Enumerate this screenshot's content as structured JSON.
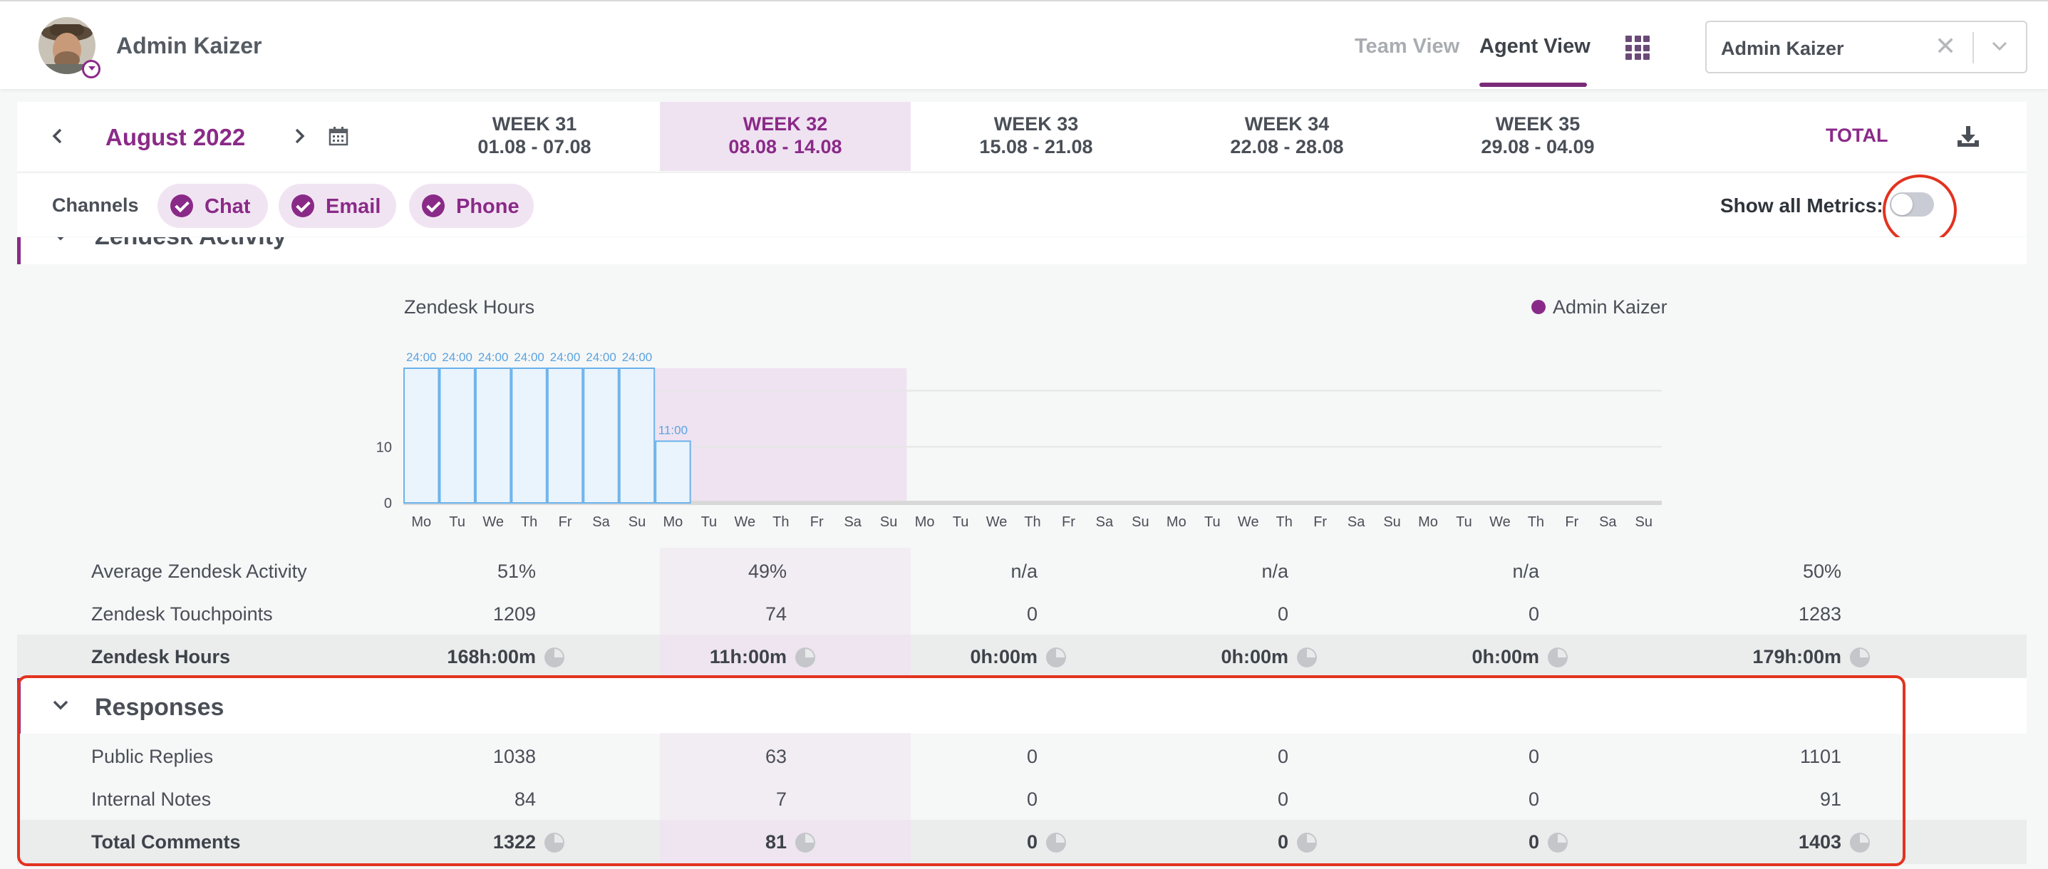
{
  "header": {
    "user_name": "Admin Kaizer",
    "tabs": [
      {
        "label": "Team View",
        "active": false
      },
      {
        "label": "Agent View",
        "active": true
      }
    ],
    "user_select": {
      "value": "Admin Kaizer"
    }
  },
  "weeks": {
    "month": "August 2022",
    "columns": [
      {
        "title": "WEEK 31",
        "range": "01.08 - 07.08",
        "active": false
      },
      {
        "title": "WEEK 32",
        "range": "08.08 - 14.08",
        "active": true
      },
      {
        "title": "WEEK 33",
        "range": "15.08 - 21.08",
        "active": false
      },
      {
        "title": "WEEK 34",
        "range": "22.08 - 28.08",
        "active": false
      },
      {
        "title": "WEEK 35",
        "range": "29.08 - 04.09",
        "active": false
      }
    ],
    "total_label": "TOTAL"
  },
  "channels": {
    "label": "Channels",
    "items": [
      "Chat",
      "Email",
      "Phone"
    ],
    "show_all_metrics_label": "Show all Metrics:",
    "show_all_metrics_on": false
  },
  "zendesk": {
    "section_title": "Zendesk Activity",
    "chart_title": "Zendesk Hours",
    "legend": "Admin Kaizer",
    "rows": [
      {
        "label": "Average Zendesk Activity",
        "values": [
          "51%",
          "49%",
          "n/a",
          "n/a",
          "n/a"
        ],
        "total": "50%",
        "bold": false,
        "icon": false
      },
      {
        "label": "Zendesk Touchpoints",
        "values": [
          "1209",
          "74",
          "0",
          "0",
          "0"
        ],
        "total": "1283",
        "bold": false,
        "icon": false
      },
      {
        "label": "Zendesk Hours",
        "values": [
          "168h:00m",
          "11h:00m",
          "0h:00m",
          "0h:00m",
          "0h:00m"
        ],
        "total": "179h:00m",
        "bold": true,
        "icon": true
      }
    ]
  },
  "responses": {
    "section_title": "Responses",
    "rows": [
      {
        "label": "Public Replies",
        "values": [
          "1038",
          "63",
          "0",
          "0",
          "0"
        ],
        "total": "1101",
        "bold": false,
        "icon": false
      },
      {
        "label": "Internal Notes",
        "values": [
          "84",
          "7",
          "0",
          "0",
          "0"
        ],
        "total": "91",
        "bold": false,
        "icon": false
      },
      {
        "label": "Total Comments",
        "values": [
          "1322",
          "81",
          "0",
          "0",
          "0"
        ],
        "total": "1403",
        "bold": true,
        "icon": true
      }
    ]
  },
  "colors": {
    "accent": "#8a2a88",
    "active_week_bg": "#efe3f1",
    "bar_fill": "#eaf4fd",
    "bar_stroke": "#6cb2ea",
    "annotation_red": "#e2331f"
  },
  "chart_data": {
    "type": "bar",
    "title": "Zendesk Hours",
    "series": [
      {
        "name": "Admin Kaizer",
        "values": [
          24,
          24,
          24,
          24,
          24,
          24,
          24,
          11,
          0,
          0,
          0,
          0,
          0,
          0,
          0,
          0,
          0,
          0,
          0,
          0,
          0,
          0,
          0,
          0,
          0,
          0,
          0,
          0,
          0,
          0,
          0,
          0,
          0,
          0,
          0
        ],
        "labels": [
          "24:00",
          "24:00",
          "24:00",
          "24:00",
          "24:00",
          "24:00",
          "24:00",
          "11:00",
          "",
          "",
          "",
          "",
          "",
          "",
          "",
          "",
          "",
          "",
          "",
          "",
          "",
          "",
          "",
          "",
          "",
          "",
          "",
          "",
          "",
          "",
          "",
          "",
          "",
          "",
          ""
        ]
      }
    ],
    "categories": [
      "Mo",
      "Tu",
      "We",
      "Th",
      "Fr",
      "Sa",
      "Su",
      "Mo",
      "Tu",
      "We",
      "Th",
      "Fr",
      "Sa",
      "Su",
      "Mo",
      "Tu",
      "We",
      "Th",
      "Fr",
      "Sa",
      "Su",
      "Mo",
      "Tu",
      "We",
      "Th",
      "Fr",
      "Sa",
      "Su",
      "Mo",
      "Tu",
      "We",
      "Th",
      "Fr",
      "Sa",
      "Su"
    ],
    "y_ticks": [
      "0",
      "10"
    ],
    "ylim": [
      0,
      24
    ],
    "grid": true,
    "highlighted_week": 2
  }
}
